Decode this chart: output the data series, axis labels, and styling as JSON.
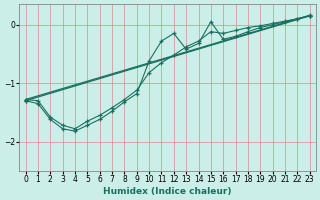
{
  "xlabel": "Humidex (Indice chaleur)",
  "bg_color": "#cceee8",
  "grid_color": "#e08080",
  "line_color": "#1a7060",
  "xlim": [
    -0.5,
    23.5
  ],
  "ylim": [
    -2.5,
    0.35
  ],
  "yticks": [
    0,
    -1,
    -2
  ],
  "xticks": [
    0,
    1,
    2,
    3,
    4,
    5,
    6,
    7,
    8,
    9,
    10,
    11,
    12,
    13,
    14,
    15,
    16,
    17,
    18,
    19,
    20,
    21,
    22,
    23
  ],
  "series": [
    {
      "points": [
        [
          0,
          -1.3
        ],
        [
          1,
          -1.35
        ],
        [
          2,
          -1.62
        ],
        [
          3,
          -1.78
        ],
        [
          4,
          -1.82
        ],
        [
          5,
          -1.72
        ],
        [
          6,
          -1.62
        ],
        [
          7,
          -1.48
        ],
        [
          8,
          -1.32
        ],
        [
          9,
          -1.18
        ],
        [
          10,
          -0.62
        ],
        [
          11,
          -0.28
        ],
        [
          12,
          -0.15
        ],
        [
          13,
          -0.42
        ],
        [
          14,
          -0.32
        ],
        [
          15,
          0.05
        ],
        [
          16,
          -0.25
        ],
        [
          17,
          -0.2
        ],
        [
          18,
          -0.12
        ],
        [
          19,
          -0.05
        ],
        [
          20,
          0.0
        ],
        [
          21,
          0.05
        ],
        [
          22,
          0.1
        ],
        [
          23,
          0.15
        ]
      ],
      "style": "zigzag"
    },
    {
      "points": [
        [
          0,
          -1.28
        ],
        [
          1,
          -1.3
        ],
        [
          2,
          -1.58
        ],
        [
          3,
          -1.72
        ],
        [
          4,
          -1.78
        ],
        [
          5,
          -1.65
        ],
        [
          6,
          -1.55
        ],
        [
          7,
          -1.42
        ],
        [
          8,
          -1.28
        ],
        [
          9,
          -1.12
        ],
        [
          10,
          -0.82
        ],
        [
          11,
          -0.65
        ],
        [
          12,
          -0.52
        ],
        [
          13,
          -0.38
        ],
        [
          14,
          -0.28
        ],
        [
          15,
          -0.12
        ],
        [
          16,
          -0.15
        ],
        [
          17,
          -0.1
        ],
        [
          18,
          -0.05
        ],
        [
          19,
          -0.02
        ],
        [
          20,
          0.02
        ],
        [
          21,
          0.06
        ],
        [
          22,
          0.1
        ],
        [
          23,
          0.15
        ]
      ],
      "style": "zigzag"
    },
    {
      "points": [
        [
          0,
          -1.3
        ],
        [
          23,
          0.15
        ]
      ],
      "style": "straight"
    },
    {
      "points": [
        [
          0,
          -1.28
        ],
        [
          23,
          0.16
        ]
      ],
      "style": "straight"
    }
  ]
}
